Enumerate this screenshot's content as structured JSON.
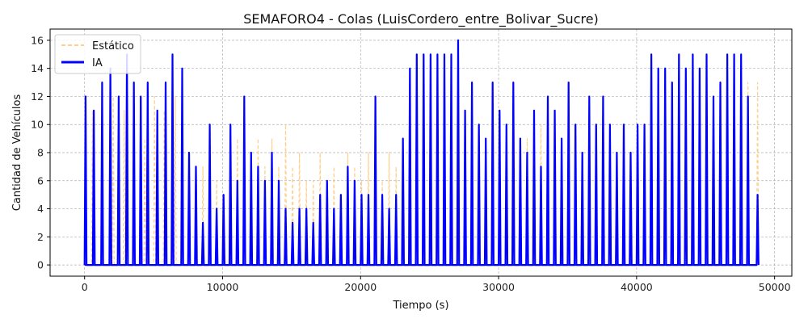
{
  "chart_data": {
    "type": "line",
    "title": "SEMAFORO4 - Colas (LuisCordero_entre_Bolivar_Sucre)",
    "xlabel": "Tiempo (s)",
    "ylabel": "Cantidad de Vehículos",
    "xlim": [
      -2500,
      51250
    ],
    "ylim": [
      -0.8,
      16.8
    ],
    "xticks": [
      0,
      10000,
      20000,
      30000,
      40000,
      50000
    ],
    "yticks": [
      0,
      2,
      4,
      6,
      8,
      10,
      12,
      14,
      16
    ],
    "grid": true,
    "legend_position": "top-left",
    "series": [
      {
        "name": "Estático",
        "color": "#ffbf66",
        "style": "dashed",
        "x": [
          0,
          500,
          1200,
          2000,
          2800,
          3500,
          4300,
          5000,
          5700,
          6500,
          7000,
          7500,
          8000,
          8500,
          9000,
          9500,
          10000,
          10500,
          11000,
          11500,
          12000,
          12500,
          13000,
          13500,
          14000,
          14500,
          15000,
          15500,
          16000,
          16500,
          17000,
          17500,
          18000,
          18500,
          19000,
          19500,
          20000,
          20500,
          21000,
          21500,
          22000,
          22500,
          23000,
          23500,
          24000,
          25000,
          26000,
          27000,
          28000,
          29000,
          30000,
          31000,
          32000,
          33000,
          34000,
          35000,
          36000,
          37000,
          38000,
          39000,
          40000,
          41000,
          42000,
          43000,
          44000,
          45000,
          46000,
          47000,
          48000,
          48700
        ],
        "y": [
          8,
          11,
          10,
          12,
          11,
          11,
          9,
          12,
          11,
          12,
          9,
          7,
          6,
          7,
          6,
          6,
          5,
          8,
          9,
          8,
          6,
          9,
          7,
          9,
          7,
          10,
          7,
          8,
          6,
          6,
          8,
          6,
          7,
          5,
          8,
          7,
          6,
          8,
          7,
          6,
          8,
          7,
          8,
          12,
          10,
          14,
          14,
          15,
          11,
          9,
          10,
          11,
          9,
          10,
          9,
          10,
          8,
          7,
          9,
          8,
          9,
          10,
          12,
          13,
          12,
          13,
          12,
          13,
          13,
          13
        ]
      },
      {
        "name": "IA",
        "color": "#0000ff",
        "style": "solid",
        "x": [
          0,
          600,
          1200,
          1800,
          2400,
          3000,
          3500,
          4000,
          4500,
          5200,
          5800,
          6300,
          7000,
          7500,
          8000,
          8500,
          9000,
          9500,
          10000,
          10500,
          11000,
          11500,
          12000,
          12500,
          13000,
          13500,
          14000,
          14500,
          15000,
          15500,
          16000,
          16500,
          17000,
          17500,
          18000,
          18500,
          19000,
          19500,
          20000,
          20500,
          21000,
          21500,
          22000,
          22500,
          23000,
          23500,
          24000,
          24500,
          25000,
          25500,
          26000,
          26500,
          27000,
          27500,
          28000,
          28500,
          29000,
          29500,
          30000,
          30500,
          31000,
          31500,
          32000,
          32500,
          33000,
          33500,
          34000,
          34500,
          35000,
          35500,
          36000,
          36500,
          37000,
          37500,
          38000,
          38500,
          39000,
          39500,
          40000,
          40500,
          41000,
          41500,
          42000,
          42500,
          43000,
          43500,
          44000,
          44500,
          45000,
          45500,
          46000,
          46500,
          47000,
          47500,
          48000,
          48700
        ],
        "y": [
          12,
          11,
          13,
          14,
          12,
          15,
          13,
          12,
          13,
          11,
          13,
          15,
          14,
          8,
          7,
          3,
          10,
          4,
          5,
          10,
          6,
          12,
          8,
          7,
          6,
          8,
          6,
          4,
          3,
          4,
          4,
          3,
          5,
          6,
          4,
          5,
          7,
          6,
          5,
          5,
          12,
          5,
          4,
          5,
          9,
          14,
          15,
          15,
          15,
          15,
          15,
          15,
          16,
          11,
          13,
          10,
          9,
          13,
          11,
          10,
          13,
          9,
          8,
          11,
          7,
          12,
          11,
          9,
          13,
          10,
          8,
          12,
          10,
          12,
          10,
          8,
          10,
          8,
          10,
          10,
          15,
          14,
          14,
          13,
          15,
          14,
          15,
          14,
          15,
          12,
          13,
          15,
          15,
          15,
          12,
          5
        ]
      }
    ]
  }
}
